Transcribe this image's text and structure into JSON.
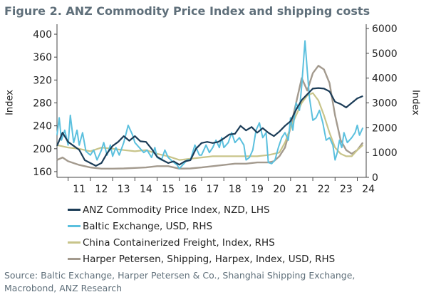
{
  "figure": {
    "title": "Figure 2. ANZ Commodity Price Index and shipping costs",
    "source_line1": "Source: Baltic Exchange, Harper Petersen & Co., Shanghai Shipping Exchange,",
    "source_line2": "Macrobond, ANZ Research"
  },
  "chart_data": {
    "type": "line",
    "ylabel": "Index",
    "y2label": "Index",
    "ylim": [
      150,
      410
    ],
    "y2lim": [
      0,
      6000
    ],
    "yticks": [
      "160",
      "200",
      "240",
      "280",
      "320",
      "360",
      "400"
    ],
    "y2ticks": [
      "0",
      "1000",
      "2000",
      "3000",
      "4000",
      "5000",
      "6000"
    ],
    "xlim": [
      2010.5,
      2024.4
    ],
    "xticks": [
      "11",
      "12",
      "13",
      "14",
      "15",
      "16",
      "17",
      "18",
      "19",
      "20",
      "21",
      "22",
      "23",
      "24"
    ],
    "grid": false,
    "legend_position": "bottom",
    "series": [
      {
        "name": "ANZ Commodity Price Index, NZD, LHS",
        "axis": "left",
        "color": "#1b3c57",
        "points": [
          [
            2010.5,
            205
          ],
          [
            2010.75,
            228
          ],
          [
            2011.0,
            212
          ],
          [
            2011.25,
            205
          ],
          [
            2011.5,
            198
          ],
          [
            2011.75,
            180
          ],
          [
            2012.0,
            175
          ],
          [
            2012.25,
            170
          ],
          [
            2012.5,
            175
          ],
          [
            2012.75,
            192
          ],
          [
            2013.0,
            205
          ],
          [
            2013.25,
            212
          ],
          [
            2013.5,
            222
          ],
          [
            2013.75,
            214
          ],
          [
            2014.0,
            222
          ],
          [
            2014.25,
            213
          ],
          [
            2014.5,
            212
          ],
          [
            2014.75,
            200
          ],
          [
            2015.0,
            186
          ],
          [
            2015.25,
            180
          ],
          [
            2015.5,
            175
          ],
          [
            2015.75,
            178
          ],
          [
            2016.0,
            172
          ],
          [
            2016.25,
            178
          ],
          [
            2016.5,
            180
          ],
          [
            2016.75,
            200
          ],
          [
            2017.0,
            210
          ],
          [
            2017.25,
            212
          ],
          [
            2017.5,
            210
          ],
          [
            2017.75,
            212
          ],
          [
            2018.0,
            218
          ],
          [
            2018.25,
            225
          ],
          [
            2018.5,
            226
          ],
          [
            2018.75,
            240
          ],
          [
            2019.0,
            232
          ],
          [
            2019.25,
            238
          ],
          [
            2019.5,
            228
          ],
          [
            2019.75,
            236
          ],
          [
            2020.0,
            228
          ],
          [
            2020.25,
            222
          ],
          [
            2020.5,
            230
          ],
          [
            2020.75,
            240
          ],
          [
            2021.0,
            248
          ],
          [
            2021.25,
            268
          ],
          [
            2021.5,
            285
          ],
          [
            2021.75,
            295
          ],
          [
            2022.0,
            305
          ],
          [
            2022.25,
            306
          ],
          [
            2022.5,
            305
          ],
          [
            2022.75,
            300
          ],
          [
            2023.0,
            282
          ],
          [
            2023.25,
            278
          ],
          [
            2023.5,
            272
          ],
          [
            2023.75,
            280
          ],
          [
            2024.0,
            288
          ],
          [
            2024.25,
            292
          ]
        ]
      },
      {
        "name": "Baltic Exchange, USD, RHS",
        "axis": "right",
        "color": "#5bc0de",
        "points": [
          [
            2010.5,
            1700
          ],
          [
            2010.6,
            2400
          ],
          [
            2010.7,
            1500
          ],
          [
            2010.85,
            1900
          ],
          [
            2011.0,
            1300
          ],
          [
            2011.1,
            2500
          ],
          [
            2011.25,
            1400
          ],
          [
            2011.4,
            1900
          ],
          [
            2011.5,
            1300
          ],
          [
            2011.65,
            1800
          ],
          [
            2011.8,
            1050
          ],
          [
            2012.0,
            900
          ],
          [
            2012.15,
            1100
          ],
          [
            2012.3,
            700
          ],
          [
            2012.5,
            1100
          ],
          [
            2012.6,
            1400
          ],
          [
            2012.75,
            900
          ],
          [
            2012.9,
            1300
          ],
          [
            2013.0,
            850
          ],
          [
            2013.15,
            1200
          ],
          [
            2013.3,
            900
          ],
          [
            2013.5,
            1400
          ],
          [
            2013.7,
            2100
          ],
          [
            2013.9,
            1700
          ],
          [
            2014.0,
            1400
          ],
          [
            2014.2,
            1200
          ],
          [
            2014.4,
            1000
          ],
          [
            2014.55,
            1100
          ],
          [
            2014.75,
            800
          ],
          [
            2014.9,
            1200
          ],
          [
            2015.0,
            800
          ],
          [
            2015.2,
            700
          ],
          [
            2015.35,
            1100
          ],
          [
            2015.5,
            800
          ],
          [
            2015.75,
            600
          ],
          [
            2015.9,
            500
          ],
          [
            2016.0,
            350
          ],
          [
            2016.2,
            550
          ],
          [
            2016.35,
            700
          ],
          [
            2016.5,
            700
          ],
          [
            2016.7,
            1300
          ],
          [
            2016.9,
            900
          ],
          [
            2017.0,
            900
          ],
          [
            2017.2,
            1300
          ],
          [
            2017.35,
            1000
          ],
          [
            2017.5,
            1200
          ],
          [
            2017.65,
            1500
          ],
          [
            2017.8,
            1200
          ],
          [
            2017.9,
            1600
          ],
          [
            2018.0,
            1200
          ],
          [
            2018.2,
            1400
          ],
          [
            2018.35,
            1800
          ],
          [
            2018.5,
            1400
          ],
          [
            2018.7,
            1600
          ],
          [
            2018.9,
            1300
          ],
          [
            2019.0,
            700
          ],
          [
            2019.15,
            800
          ],
          [
            2019.3,
            1100
          ],
          [
            2019.45,
            1900
          ],
          [
            2019.6,
            2200
          ],
          [
            2019.75,
            1600
          ],
          [
            2019.9,
            1800
          ],
          [
            2020.0,
            600
          ],
          [
            2020.15,
            550
          ],
          [
            2020.3,
            700
          ],
          [
            2020.45,
            1200
          ],
          [
            2020.6,
            1600
          ],
          [
            2020.75,
            1800
          ],
          [
            2020.9,
            1500
          ],
          [
            2021.0,
            2400
          ],
          [
            2021.1,
            1900
          ],
          [
            2021.25,
            3000
          ],
          [
            2021.4,
            2700
          ],
          [
            2021.5,
            3700
          ],
          [
            2021.65,
            5500
          ],
          [
            2021.75,
            4300
          ],
          [
            2021.85,
            3200
          ],
          [
            2022.0,
            2300
          ],
          [
            2022.15,
            2400
          ],
          [
            2022.3,
            2700
          ],
          [
            2022.45,
            2200
          ],
          [
            2022.6,
            1500
          ],
          [
            2022.75,
            1600
          ],
          [
            2022.9,
            1300
          ],
          [
            2023.0,
            700
          ],
          [
            2023.1,
            1000
          ],
          [
            2023.2,
            1500
          ],
          [
            2023.3,
            1200
          ],
          [
            2023.4,
            1800
          ],
          [
            2023.55,
            1400
          ],
          [
            2023.75,
            1600
          ],
          [
            2023.9,
            1800
          ],
          [
            2024.0,
            2100
          ],
          [
            2024.1,
            1700
          ],
          [
            2024.25,
            2000
          ]
        ]
      },
      {
        "name": "China Containerized Freight, Index, RHS",
        "axis": "right",
        "color": "#c8c48a",
        "points": [
          [
            2010.5,
            1300
          ],
          [
            2011.0,
            1200
          ],
          [
            2011.5,
            1150
          ],
          [
            2012.0,
            1050
          ],
          [
            2012.5,
            1200
          ],
          [
            2013.0,
            1150
          ],
          [
            2013.5,
            1100
          ],
          [
            2014.0,
            1050
          ],
          [
            2014.5,
            1100
          ],
          [
            2015.0,
            950
          ],
          [
            2015.5,
            850
          ],
          [
            2016.0,
            700
          ],
          [
            2016.5,
            750
          ],
          [
            2017.0,
            800
          ],
          [
            2017.5,
            850
          ],
          [
            2018.0,
            850
          ],
          [
            2018.5,
            850
          ],
          [
            2019.0,
            850
          ],
          [
            2019.5,
            850
          ],
          [
            2020.0,
            900
          ],
          [
            2020.5,
            1000
          ],
          [
            2020.75,
            1400
          ],
          [
            2021.0,
            2000
          ],
          [
            2021.25,
            2500
          ],
          [
            2021.5,
            3000
          ],
          [
            2021.75,
            3300
          ],
          [
            2022.0,
            3400
          ],
          [
            2022.25,
            3100
          ],
          [
            2022.5,
            2500
          ],
          [
            2022.75,
            1800
          ],
          [
            2023.0,
            1200
          ],
          [
            2023.25,
            950
          ],
          [
            2023.5,
            850
          ],
          [
            2023.75,
            850
          ],
          [
            2024.0,
            1100
          ],
          [
            2024.25,
            1300
          ]
        ]
      },
      {
        "name": "Harper Petersen, Shipping, Harpex, Index, USD, RHS",
        "axis": "right",
        "color": "#a39a8e",
        "points": [
          [
            2010.5,
            700
          ],
          [
            2010.75,
            800
          ],
          [
            2011.0,
            650
          ],
          [
            2011.5,
            500
          ],
          [
            2012.0,
            400
          ],
          [
            2012.5,
            350
          ],
          [
            2013.0,
            350
          ],
          [
            2013.5,
            360
          ],
          [
            2014.0,
            380
          ],
          [
            2014.5,
            400
          ],
          [
            2015.0,
            450
          ],
          [
            2015.5,
            450
          ],
          [
            2016.0,
            350
          ],
          [
            2016.5,
            360
          ],
          [
            2017.0,
            400
          ],
          [
            2017.5,
            450
          ],
          [
            2018.0,
            500
          ],
          [
            2018.5,
            550
          ],
          [
            2019.0,
            550
          ],
          [
            2019.5,
            600
          ],
          [
            2020.0,
            600
          ],
          [
            2020.25,
            650
          ],
          [
            2020.5,
            850
          ],
          [
            2020.75,
            1200
          ],
          [
            2021.0,
            2000
          ],
          [
            2021.25,
            3000
          ],
          [
            2021.5,
            4000
          ],
          [
            2021.75,
            3500
          ],
          [
            2022.0,
            4200
          ],
          [
            2022.25,
            4500
          ],
          [
            2022.5,
            4350
          ],
          [
            2022.75,
            3800
          ],
          [
            2023.0,
            2500
          ],
          [
            2023.25,
            1500
          ],
          [
            2023.5,
            1100
          ],
          [
            2023.75,
            950
          ],
          [
            2024.0,
            1100
          ],
          [
            2024.25,
            1400
          ]
        ]
      }
    ]
  }
}
